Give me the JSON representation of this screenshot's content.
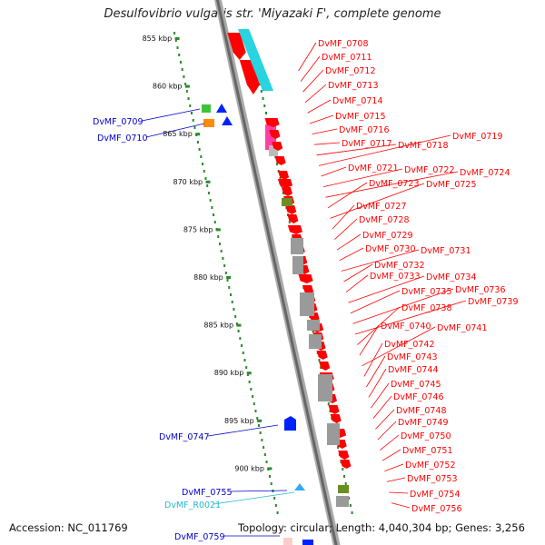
{
  "title": "Desulfovibrio vulgaris str. 'Miyazaki F', complete genome",
  "footer": {
    "accession": "Accession: NC_011769",
    "topology": "Topology: circular; Length: 4,040,304 bp; Genes: 3,256"
  },
  "colors": {
    "gene": "#ff0000",
    "label_right": "#ff0000",
    "label_left": "#0000cc",
    "label_rna": "#22b8d6",
    "scale_ticks": "#2a8a2a",
    "cyan_feature": "#29d3e0",
    "magenta_feature": "#ff3fa8",
    "green_feature": "#6b8e23",
    "blue_feature": "#0022ff"
  },
  "scale_labels": [
    "855 kbp",
    "860 kbp",
    "865 kbp",
    "870 kbp",
    "875 kbp",
    "880 kbp",
    "885 kbp",
    "890 kbp",
    "895 kbp",
    "900 kbp"
  ],
  "right_labels": [
    "DvMF_0708",
    "DvMF_0711",
    "DvMF_0712",
    "DvMF_0713",
    "DvMF_0714",
    "DvMF_0715",
    "DvMF_0716",
    "DvMF_0717",
    "DvMF_0718",
    "DvMF_0719",
    "DvMF_0721",
    "DvMF_0722",
    "DvMF_0724",
    "DvMF_0723",
    "DvMF_0725",
    "DvMF_0727",
    "DvMF_0728",
    "DvMF_0729",
    "DvMF_0730",
    "DvMF_0731",
    "DvMF_0732",
    "DvMF_0733",
    "DvMF_0734",
    "DvMF_0735",
    "DvMF_0736",
    "DvMF_0739",
    "DvMF_0738",
    "DvMF_0740",
    "DvMF_0741",
    "DvMF_0742",
    "DvMF_0743",
    "DvMF_0744",
    "DvMF_0745",
    "DvMF_0746",
    "DvMF_0748",
    "DvMF_0749",
    "DvMF_0750",
    "DvMF_0751",
    "DvMF_0752",
    "DvMF_0753",
    "DvMF_0754",
    "DvMF_0756"
  ],
  "left_labels": [
    {
      "text": "DvMF_0709",
      "kind": "gene"
    },
    {
      "text": "DvMF_0710",
      "kind": "gene"
    },
    {
      "text": "DvMF_0747",
      "kind": "gene"
    },
    {
      "text": "DvMF_0755",
      "kind": "gene"
    },
    {
      "text": "DvMF_R0021",
      "kind": "rna"
    },
    {
      "text": "DvMF_0759",
      "kind": "gene"
    }
  ]
}
